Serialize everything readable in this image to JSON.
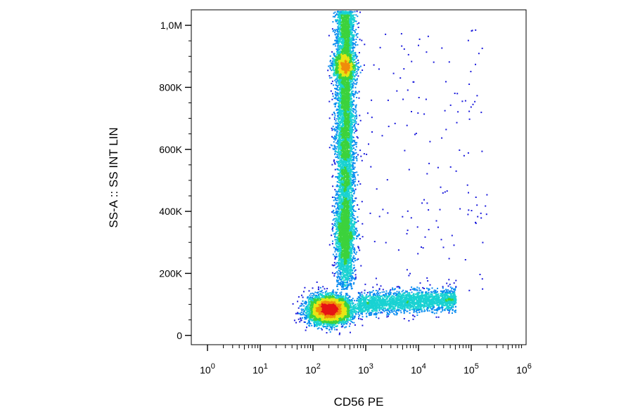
{
  "chart_data": {
    "type": "scatter",
    "style": "density-colored dot plot",
    "xlabel": "CD56 PE",
    "ylabel": "SS-A :: SS INT LIN",
    "xscale": "log",
    "xlim": [
      1,
      1000000
    ],
    "ylim": [
      -30000,
      1050000
    ],
    "x_ticks": [
      {
        "base": "10",
        "exp": "0",
        "value": 1
      },
      {
        "base": "10",
        "exp": "1",
        "value": 10
      },
      {
        "base": "10",
        "exp": "2",
        "value": 100
      },
      {
        "base": "10",
        "exp": "3",
        "value": 1000
      },
      {
        "base": "10",
        "exp": "4",
        "value": 10000
      },
      {
        "base": "10",
        "exp": "5",
        "value": 100000
      },
      {
        "base": "10",
        "exp": "6",
        "value": 1000000
      }
    ],
    "y_ticks": [
      {
        "label": "0",
        "value": 0
      },
      {
        "label": "200K",
        "value": 200000
      },
      {
        "label": "400K",
        "value": 400000
      },
      {
        "label": "600K",
        "value": 600000
      },
      {
        "label": "800K",
        "value": 800000
      },
      {
        "label": "1,0M",
        "value": 1000000
      }
    ],
    "density_colors": [
      "#1c1cdc",
      "#0a8cf0",
      "#19d2d2",
      "#3cd23c",
      "#e6e614",
      "#f08c0a",
      "#e61414"
    ],
    "populations": [
      {
        "id": "low-ss-cd56-negative",
        "x_center": 200,
        "y_center": 85000,
        "x_spread_decades": 0.2,
        "y_spread": 22000,
        "count": 5200
      },
      {
        "id": "high-ss-cd56-negative",
        "x_center": 380,
        "y_center": 870000,
        "x_spread_decades": 0.1,
        "y_spread": 20000,
        "count": 1200
      },
      {
        "id": "high-ss-column",
        "x_center": 400,
        "y_range": [
          150000,
          1050000
        ],
        "x_spread_decades": 0.09,
        "count": 6500
      },
      {
        "id": "mid-ss-cd56-negative",
        "x_center": 380,
        "y_center": 330000,
        "x_spread_decades": 0.1,
        "y_spread": 50000,
        "count": 900
      },
      {
        "id": "low-ss-cd56-positive",
        "x_range": [
          700,
          50000
        ],
        "y_center": 105000,
        "y_spread": 18000,
        "count": 2200
      },
      {
        "id": "scattered-events",
        "x_range": [
          700,
          200000
        ],
        "y_range": [
          130000,
          1000000
        ],
        "count": 160
      }
    ]
  }
}
